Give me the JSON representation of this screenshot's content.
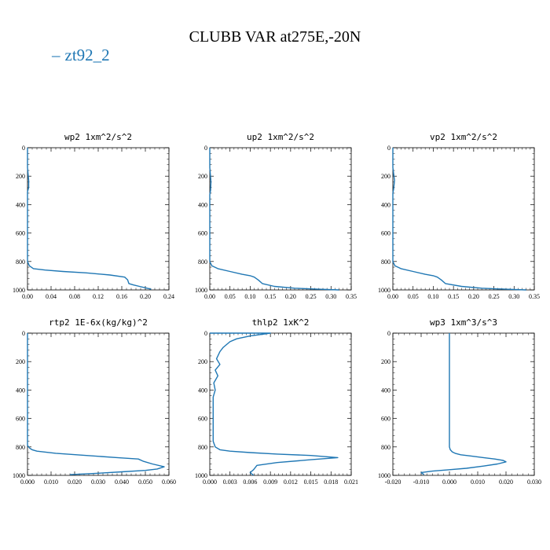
{
  "title": "CLUBB VAR at275E,-20N",
  "legend": {
    "label": "zt92_2",
    "color": "#1f77b4"
  },
  "chart_data": [
    {
      "type": "line",
      "title": "wp2   1xm^2/s^2",
      "xlim": [
        0,
        0.24
      ],
      "ylim": [
        1000,
        0
      ],
      "xticks": [
        0,
        0.04,
        0.08,
        0.12,
        0.16,
        0.2,
        0.24
      ],
      "xtick_labels": [
        "0.00",
        "0.04",
        "0.08",
        "0.12",
        "0.16",
        "0.20",
        "0.24"
      ],
      "yticks": [
        0,
        200,
        400,
        600,
        800,
        1000
      ],
      "ytick_labels": [
        "0",
        "200",
        "400",
        "600",
        "800",
        "1000"
      ],
      "series": [
        {
          "name": "zt92_2",
          "x": [
            0.0,
            0.0,
            0.002,
            0.002,
            0.0,
            0.0,
            0.003,
            0.01,
            0.03,
            0.06,
            0.1,
            0.14,
            0.165,
            0.17,
            0.172,
            0.18,
            0.19,
            0.2,
            0.21
          ],
          "y": [
            0,
            140,
            230,
            280,
            310,
            800,
            830,
            850,
            860,
            870,
            880,
            895,
            910,
            930,
            955,
            965,
            975,
            985,
            995
          ]
        }
      ]
    },
    {
      "type": "line",
      "title": "up2   1xm^2/s^2",
      "xlim": [
        0,
        0.35
      ],
      "ylim": [
        1000,
        0
      ],
      "xticks": [
        0,
        0.05,
        0.1,
        0.15,
        0.2,
        0.25,
        0.3,
        0.35
      ],
      "xtick_labels": [
        "0.00",
        "0.05",
        "0.10",
        "0.15",
        "0.20",
        "0.25",
        "0.30",
        "0.35"
      ],
      "yticks": [
        0,
        200,
        400,
        600,
        800,
        1000
      ],
      "ytick_labels": [
        "0",
        "200",
        "400",
        "600",
        "800",
        "1000"
      ],
      "series": [
        {
          "name": "zt92_2",
          "x": [
            0.0,
            0.0,
            0.003,
            0.002,
            0.0,
            0.0,
            0.005,
            0.02,
            0.05,
            0.08,
            0.1,
            0.11,
            0.12,
            0.13,
            0.16,
            0.21,
            0.27,
            0.32
          ],
          "y": [
            0,
            140,
            240,
            300,
            330,
            800,
            830,
            850,
            870,
            890,
            900,
            910,
            930,
            955,
            975,
            988,
            995,
            1000
          ]
        }
      ]
    },
    {
      "type": "line",
      "title": "vp2   1xm^2/s^2",
      "xlim": [
        0,
        0.35
      ],
      "ylim": [
        1000,
        0
      ],
      "xticks": [
        0,
        0.05,
        0.1,
        0.15,
        0.2,
        0.25,
        0.3,
        0.35
      ],
      "xtick_labels": [
        "0.00",
        "0.05",
        "0.10",
        "0.15",
        "0.20",
        "0.25",
        "0.30",
        "0.35"
      ],
      "yticks": [
        0,
        200,
        400,
        600,
        800,
        1000
      ],
      "ytick_labels": [
        "0",
        "200",
        "400",
        "600",
        "800",
        "1000"
      ],
      "series": [
        {
          "name": "zt92_2",
          "x": [
            0.0,
            0.0,
            0.004,
            0.002,
            0.0,
            0.0,
            0.005,
            0.02,
            0.05,
            0.08,
            0.1,
            0.11,
            0.12,
            0.13,
            0.17,
            0.22,
            0.28,
            0.33
          ],
          "y": [
            0,
            140,
            230,
            290,
            320,
            800,
            830,
            850,
            870,
            890,
            900,
            910,
            930,
            955,
            975,
            988,
            995,
            1000
          ]
        }
      ]
    },
    {
      "type": "line",
      "title": "rtp2   1E-6x(kg/kg)^2",
      "xlim": [
        0,
        0.06
      ],
      "ylim": [
        1000,
        0
      ],
      "xticks": [
        0,
        0.01,
        0.02,
        0.03,
        0.04,
        0.05,
        0.06
      ],
      "xtick_labels": [
        "0.000",
        "0.010",
        "0.020",
        "0.030",
        "0.040",
        "0.050",
        "0.060"
      ],
      "yticks": [
        0,
        200,
        400,
        600,
        800,
        1000
      ],
      "ytick_labels": [
        "0",
        "200",
        "400",
        "600",
        "800",
        "1000"
      ],
      "series": [
        {
          "name": "zt92_2",
          "x": [
            0.0,
            0.0,
            0.0005,
            0.001,
            0.002,
            0.004,
            0.012,
            0.025,
            0.038,
            0.047,
            0.049,
            0.053,
            0.058,
            0.055,
            0.05,
            0.04,
            0.03,
            0.018
          ],
          "y": [
            0,
            790,
            800,
            810,
            820,
            830,
            845,
            860,
            875,
            885,
            900,
            920,
            940,
            955,
            965,
            975,
            985,
            995
          ]
        }
      ]
    },
    {
      "type": "line",
      "title": "thlp2   1xK^2",
      "xlim": [
        0,
        0.021
      ],
      "ylim": [
        1000,
        0
      ],
      "xticks": [
        0,
        0.003,
        0.006,
        0.009,
        0.012,
        0.015,
        0.018,
        0.021
      ],
      "xtick_labels": [
        "0.000",
        "0.003",
        "0.006",
        "0.009",
        "0.012",
        "0.015",
        "0.018",
        "0.021"
      ],
      "yticks": [
        0,
        200,
        400,
        600,
        800,
        1000
      ],
      "ytick_labels": [
        "0",
        "200",
        "400",
        "600",
        "800",
        "1000"
      ],
      "series": [
        {
          "name": "zt92_2",
          "x": [
            0.0,
            0.009,
            0.006,
            0.004,
            0.003,
            0.0025,
            0.002,
            0.0015,
            0.001,
            0.0015,
            0.0008,
            0.0012,
            0.0006,
            0.0008,
            0.0005,
            0.0005,
            0.0008,
            0.0015,
            0.003,
            0.006,
            0.01,
            0.015,
            0.019,
            0.015,
            0.01,
            0.007,
            0.0065,
            0.006,
            0.0065
          ],
          "y": [
            0,
            0,
            20,
            40,
            60,
            80,
            100,
            130,
            180,
            220,
            260,
            300,
            350,
            400,
            450,
            760,
            800,
            820,
            830,
            840,
            850,
            860,
            875,
            890,
            910,
            930,
            960,
            980,
            1000
          ]
        }
      ]
    },
    {
      "type": "line",
      "title": "wp3   1xm^3/s^3",
      "xlim": [
        -0.02,
        0.03
      ],
      "ylim": [
        1000,
        0
      ],
      "xticks": [
        -0.02,
        -0.01,
        0,
        0.01,
        0.02,
        0.03
      ],
      "xtick_labels": [
        "-0.020",
        "-0.010",
        "0.000",
        "0.010",
        "0.020",
        "0.030"
      ],
      "yticks": [
        0,
        200,
        400,
        600,
        800,
        1000
      ],
      "ytick_labels": [
        "0",
        "200",
        "400",
        "600",
        "800",
        "1000"
      ],
      "series": [
        {
          "name": "zt92_2",
          "x": [
            0.0,
            0.0,
            0.0003,
            0.001,
            0.002,
            0.004,
            0.008,
            0.012,
            0.016,
            0.019,
            0.02,
            0.017,
            0.012,
            0.006,
            0.0,
            -0.006,
            -0.01,
            -0.009
          ],
          "y": [
            0,
            800,
            820,
            835,
            845,
            855,
            865,
            875,
            885,
            895,
            905,
            920,
            935,
            950,
            960,
            970,
            980,
            995
          ]
        }
      ]
    }
  ]
}
